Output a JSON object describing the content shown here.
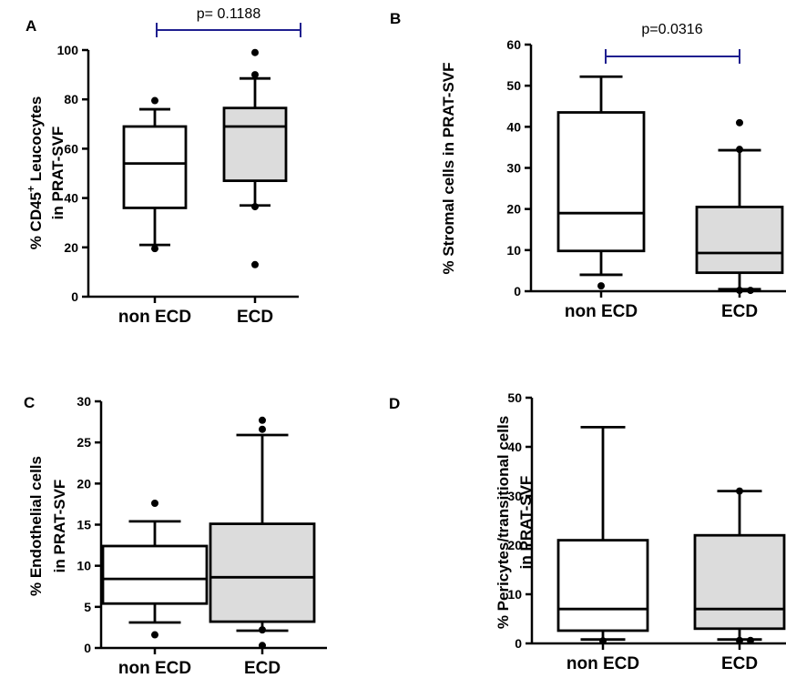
{
  "colors": {
    "ecd_fill": "#dcdcdc",
    "non_ecd_fill": "#ffffff",
    "bracket": "#1f1f8f",
    "ink": "#000000"
  },
  "chart_data": [
    {
      "panel": "A",
      "type": "box",
      "categories": [
        "non ECD",
        "ECD"
      ],
      "ylabel_line1": "% CD45",
      "ylabel_sup": "+",
      "ylabel_line1b": " Leucocytes",
      "ylabel_line2": "in PRAT-SVF",
      "ylim": [
        0,
        100
      ],
      "yticks": [
        0,
        20,
        40,
        60,
        80,
        100
      ],
      "boxes": [
        {
          "name": "non ECD",
          "whisker_low": 21,
          "q1": 36,
          "median": 54,
          "q3": 69,
          "whisker_high": 76,
          "outliers": [
            79.5,
            19.5
          ]
        },
        {
          "name": "ECD",
          "whisker_low": 37,
          "q1": 47,
          "median": 69,
          "q3": 76.5,
          "whisker_high": 88.5,
          "outliers": [
            99,
            90,
            36.5,
            13
          ]
        }
      ],
      "significance": "p= 0.1188"
    },
    {
      "panel": "B",
      "type": "box",
      "categories": [
        "non ECD",
        "ECD"
      ],
      "ylabel_line1": "% Stromal cells in PRAT-SVF",
      "ylabel_line2": "",
      "ylim": [
        0,
        60
      ],
      "yticks": [
        0,
        10,
        20,
        30,
        40,
        50,
        60
      ],
      "boxes": [
        {
          "name": "non ECD",
          "whisker_low": 4,
          "q1": 9.8,
          "median": 19,
          "q3": 43.5,
          "whisker_high": 52.2,
          "outliers": [
            1.3
          ]
        },
        {
          "name": "ECD",
          "whisker_low": 0.5,
          "q1": 4.5,
          "median": 9.3,
          "q3": 20.5,
          "whisker_high": 34.3,
          "outliers": [
            41,
            34.5,
            0.2,
            0.2
          ]
        }
      ],
      "significance": "p=0.0316"
    },
    {
      "panel": "C",
      "type": "box",
      "categories": [
        "non ECD",
        "ECD"
      ],
      "ylabel_line1": "% Endothelial cells",
      "ylabel_line2": "in PRAT-SVF",
      "ylim": [
        0,
        30
      ],
      "yticks": [
        0,
        5,
        10,
        15,
        20,
        25,
        30
      ],
      "boxes": [
        {
          "name": "non ECD",
          "whisker_low": 3.1,
          "q1": 5.4,
          "median": 8.4,
          "q3": 12.4,
          "whisker_high": 15.4,
          "outliers": [
            17.6,
            1.6
          ]
        },
        {
          "name": "ECD",
          "whisker_low": 2.1,
          "q1": 3.2,
          "median": 8.6,
          "q3": 15.1,
          "whisker_high": 25.9,
          "outliers": [
            27.7,
            26.6,
            2.2,
            0.3
          ]
        }
      ],
      "significance": ""
    },
    {
      "panel": "D",
      "type": "box",
      "categories": [
        "non ECD",
        "ECD"
      ],
      "ylabel_line1": "% Pericytes/transitional cells",
      "ylabel_line2": "in PRAT-SVF",
      "ylim": [
        0,
        50
      ],
      "yticks": [
        0,
        10,
        20,
        30,
        40,
        50
      ],
      "boxes": [
        {
          "name": "non ECD",
          "whisker_low": 0.8,
          "q1": 2.6,
          "median": 7,
          "q3": 21,
          "whisker_high": 44,
          "outliers": [
            0.5
          ]
        },
        {
          "name": "ECD",
          "whisker_low": 0.8,
          "q1": 3,
          "median": 7,
          "q3": 22,
          "whisker_high": 31,
          "outliers": [
            31,
            0.6,
            0.6
          ]
        }
      ],
      "significance": ""
    }
  ]
}
